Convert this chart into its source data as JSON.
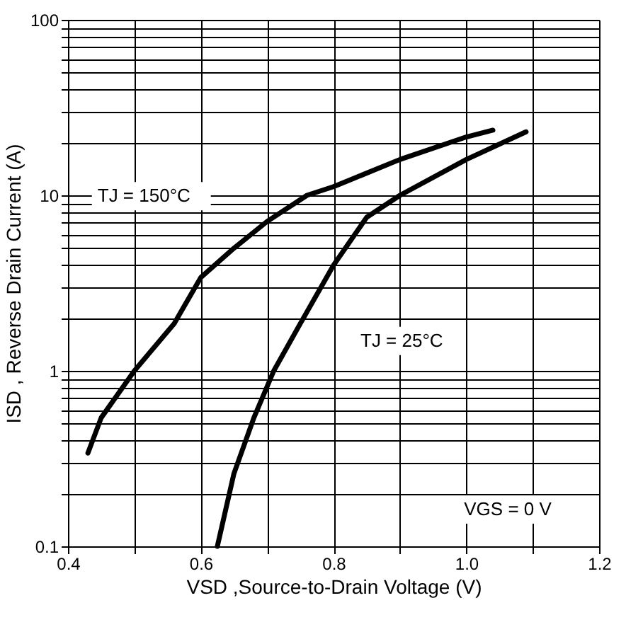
{
  "chart_data": {
    "type": "line",
    "xlabel": "VSD ,Source-to-Drain Voltage (V)",
    "ylabel": "ISD , Reverse Drain Current (A)",
    "log": "y",
    "grid": true,
    "xlim": [
      0.4,
      1.2
    ],
    "ylim": [
      0.1,
      100
    ],
    "xticks": [
      0.4,
      {
        "value": 0.5,
        "label": null
      },
      0.6,
      {
        "value": 0.7,
        "label": null
      },
      0.8,
      {
        "value": 0.9,
        "label": null
      },
      {
        "value": 1.0,
        "label": "1.0"
      },
      {
        "value": 1.1,
        "label": null
      },
      1.2
    ],
    "yticks": [
      0.1,
      {
        "value": 0.2,
        "label": null
      },
      {
        "value": 0.3,
        "label": null
      },
      {
        "value": 0.4,
        "label": null
      },
      {
        "value": 0.5,
        "label": null
      },
      {
        "value": 0.6,
        "label": null
      },
      {
        "value": 0.7,
        "label": null
      },
      {
        "value": 0.8,
        "label": null
      },
      {
        "value": 0.9,
        "label": null
      },
      1,
      {
        "value": 2,
        "label": null
      },
      {
        "value": 3,
        "label": null
      },
      {
        "value": 4,
        "label": null
      },
      {
        "value": 5,
        "label": null
      },
      {
        "value": 6,
        "label": null
      },
      {
        "value": 7,
        "label": null
      },
      {
        "value": 8,
        "label": null
      },
      {
        "value": 9,
        "label": null
      },
      10,
      {
        "value": 20,
        "label": null
      },
      {
        "value": 30,
        "label": null
      },
      {
        "value": 40,
        "label": null
      },
      {
        "value": 50,
        "label": null
      },
      {
        "value": 60,
        "label": null
      },
      {
        "value": 70,
        "label": null
      },
      {
        "value": 80,
        "label": null
      },
      {
        "value": 90,
        "label": null
      },
      100
    ],
    "series": [
      {
        "color": "#000000",
        "x": [
          0.43,
          0.45,
          0.5,
          0.56,
          0.6,
          0.65,
          0.7,
          0.76,
          0.8,
          0.9,
          1.0,
          1.04
        ],
        "values": [
          0.34,
          0.54,
          1.0,
          1.86,
          3.4,
          5.0,
          7.1,
          10,
          11.2,
          16,
          21.5,
          23.5
        ]
      },
      {
        "color": "#000000",
        "x": [
          0.625,
          0.65,
          0.68,
          0.71,
          0.75,
          0.8,
          0.85,
          0.9,
          1.0,
          1.09
        ],
        "values": [
          0.1,
          0.26,
          0.54,
          1.0,
          1.86,
          4.0,
          7.5,
          10,
          16,
          23
        ]
      }
    ],
    "annotations": [
      "TJ = 150°C",
      "TJ = 25°C",
      "VGS = 0 V"
    ]
  }
}
